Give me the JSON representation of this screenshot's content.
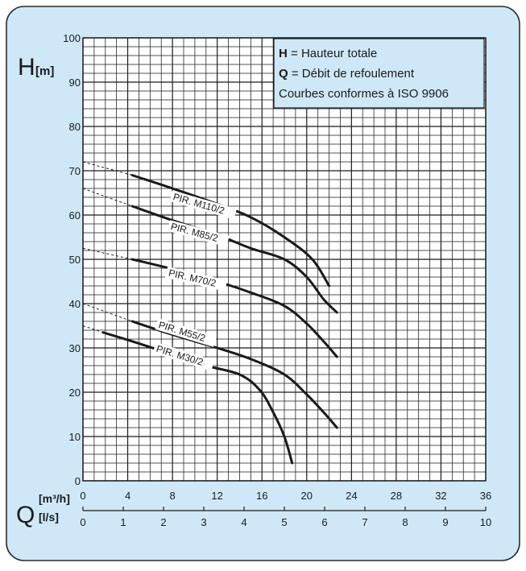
{
  "colors": {
    "panel_bg": "#cfe8f7",
    "panel_border": "#2b2b2b",
    "plot_bg": "#ffffff",
    "grid": "#1a1a1a",
    "curve": "#1a1a1a",
    "legend_bg": "#cfe8f7"
  },
  "y_axis": {
    "symbol": "H",
    "unit": "[m]",
    "ticks": [
      "0",
      "10",
      "20",
      "30",
      "40",
      "50",
      "60",
      "70",
      "80",
      "90",
      "100"
    ]
  },
  "x_axis": {
    "symbol": "Q",
    "unit_top": "[m³/h]",
    "unit_bottom": "[l/s]",
    "ticks_m3h": [
      "0",
      "4",
      "8",
      "12",
      "16",
      "20",
      "24",
      "28",
      "32",
      "36"
    ],
    "ticks_ls": [
      "0",
      "1",
      "2",
      "3",
      "4",
      "5",
      "6",
      "7",
      "8",
      "9",
      "10"
    ]
  },
  "legend": {
    "h_symbol": "H",
    "h_text": " = Hauteur totale",
    "q_symbol": "Q",
    "q_text": " = Débit de refoulement",
    "note": "Courbes conformes à ISO 9906"
  },
  "chart_data": {
    "type": "line",
    "xlabel": "Q [m³/h]",
    "x2label": "[l/s]",
    "ylabel": "H[m]",
    "xlim": [
      0,
      36
    ],
    "ylim": [
      0,
      100
    ],
    "grid": true,
    "legend_position": "top-right",
    "series": [
      {
        "name": "PIR. M110/2",
        "dashed": [
          [
            0,
            72
          ],
          [
            4.4,
            69
          ]
        ],
        "values": [
          [
            4.4,
            69
          ],
          [
            8,
            66
          ],
          [
            12,
            62.5
          ],
          [
            15,
            59.5
          ],
          [
            18,
            55
          ],
          [
            20.5,
            50
          ],
          [
            22,
            44
          ]
        ]
      },
      {
        "name": "PIR. M85/2",
        "dashed": [
          [
            0,
            66
          ],
          [
            4.4,
            62
          ]
        ],
        "values": [
          [
            4.4,
            62
          ],
          [
            8,
            58.8
          ],
          [
            12,
            55.5
          ],
          [
            15,
            52.5
          ],
          [
            18,
            50
          ],
          [
            20,
            46
          ],
          [
            21.5,
            41
          ],
          [
            22.7,
            38
          ]
        ]
      },
      {
        "name": "PIR. M70/2",
        "dashed": [
          [
            0,
            52.5
          ],
          [
            4.4,
            50
          ]
        ],
        "values": [
          [
            4.4,
            50
          ],
          [
            8,
            47.8
          ],
          [
            12,
            45
          ],
          [
            15,
            42.5
          ],
          [
            18,
            39.5
          ],
          [
            20,
            35.5
          ],
          [
            21.5,
            31.5
          ],
          [
            22.7,
            28
          ]
        ]
      },
      {
        "name": "PIR. M55/2",
        "dashed": [
          [
            0,
            40
          ],
          [
            4.4,
            36
          ]
        ],
        "values": [
          [
            4.4,
            36
          ],
          [
            8,
            33
          ],
          [
            12,
            30
          ],
          [
            15,
            27.5
          ],
          [
            18,
            24
          ],
          [
            20,
            19.5
          ],
          [
            21.5,
            15.5
          ],
          [
            22.7,
            12
          ]
        ]
      },
      {
        "name": "PIR. M30/2",
        "dashed": [
          [
            0,
            35
          ],
          [
            1.8,
            33.5
          ]
        ],
        "values": [
          [
            1.8,
            33.5
          ],
          [
            4.4,
            31.5
          ],
          [
            8,
            28.5
          ],
          [
            11,
            26
          ],
          [
            14,
            24
          ],
          [
            15.8,
            20.5
          ],
          [
            17,
            15.5
          ],
          [
            18,
            10
          ],
          [
            18.7,
            4
          ]
        ]
      }
    ]
  }
}
